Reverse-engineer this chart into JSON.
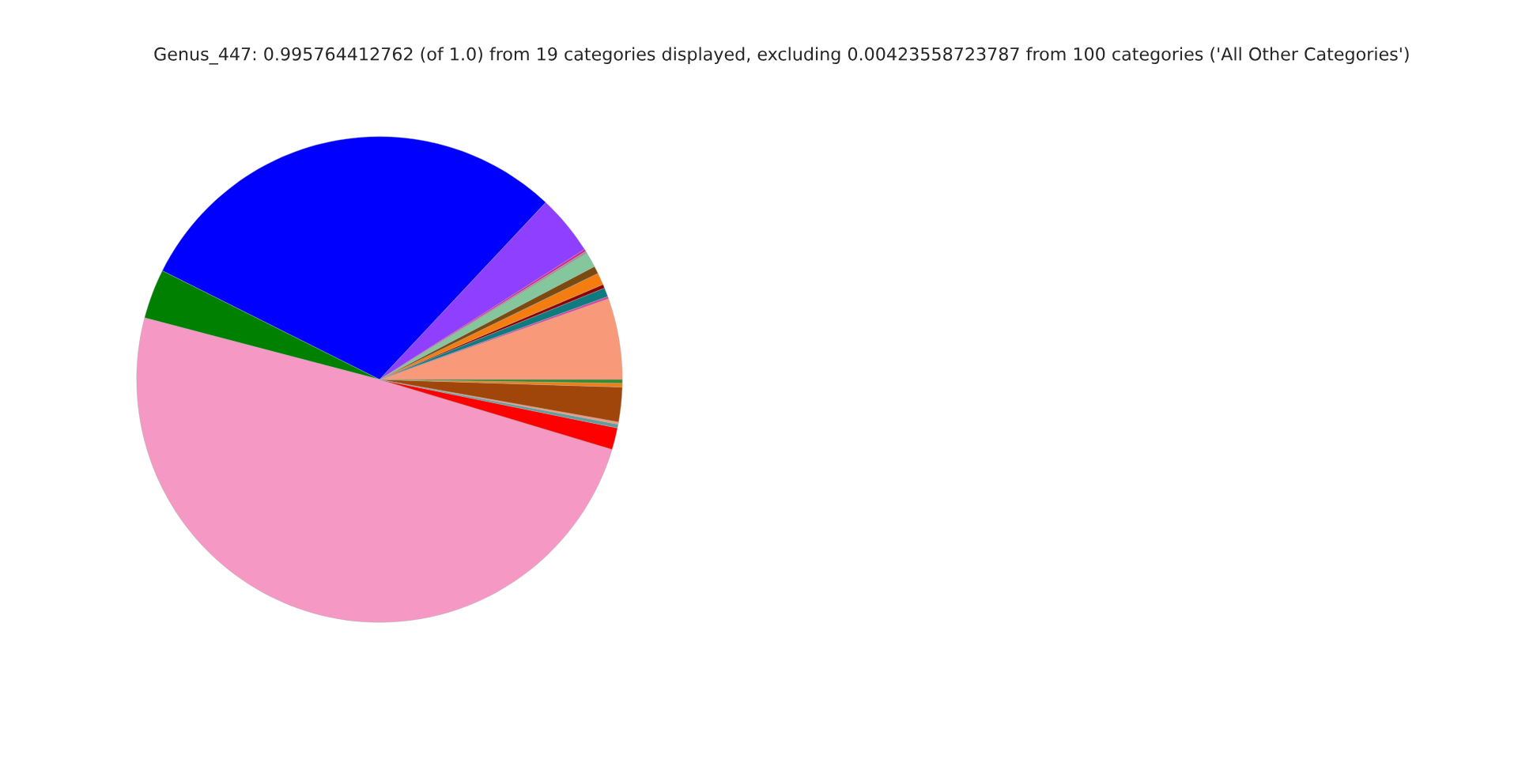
{
  "chart_data": {
    "type": "pie",
    "title": "Genus_447: 0.995764412762 (of 1.0) from 19 categories displayed, excluding 0.00423558723787 from 100 categories ('All Other Categories')",
    "categories": [
      null,
      null,
      null,
      null,
      null,
      null,
      null,
      null,
      null,
      null,
      null,
      null,
      null,
      null,
      null,
      null,
      null,
      null,
      null
    ],
    "values": [
      5.4,
      0.15,
      0.6,
      0.25,
      0.8,
      0.5,
      1.0,
      0.15,
      0.15,
      4.0,
      29.6,
      3.3,
      49.42,
      1.45,
      0.25,
      0.15,
      2.3,
      0.25,
      0.25
    ],
    "colors": [
      "#f89a7a",
      "#e0409a",
      "#0f7b80",
      "#8b0000",
      "#f57d0f",
      "#7a4a10",
      "#85c79c",
      "#9a9a9a",
      "#e0208a",
      "#8f3fff",
      "#0000ff",
      "#008000",
      "#f598c4",
      "#ff0000",
      "#5f9ea0",
      "#f89a7a",
      "#a0460a",
      "#f57d0f",
      "#3a8a30"
    ]
  }
}
